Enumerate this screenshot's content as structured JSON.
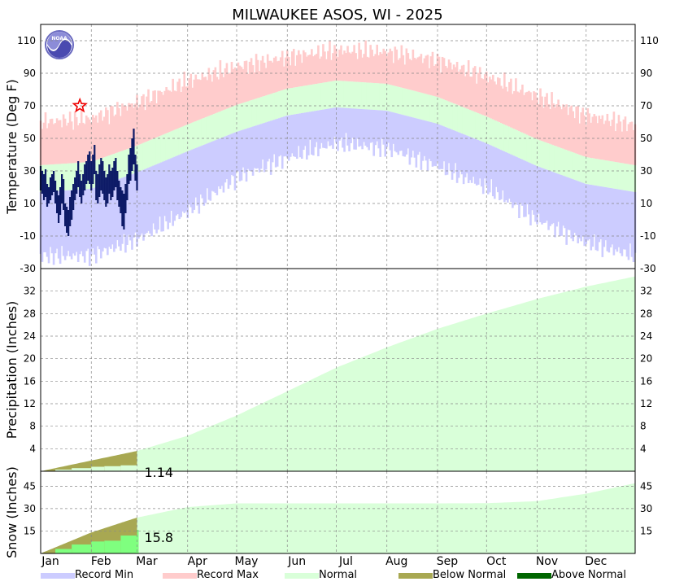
{
  "title": "MILWAUKEE    ASOS, WI - 2025",
  "logo_text": "NOAA",
  "colors": {
    "record_min": "#ccccff",
    "record_max": "#ffcccc",
    "normal": "#d9ffd9",
    "below_normal": "#a8a852",
    "above_normal": "#006600",
    "observed_temp": "#0d1a66",
    "observed_snow_depth": "#7fff7f",
    "grid": "#888888",
    "star": "#ee0000"
  },
  "months": [
    "Jan",
    "Feb",
    "Mar",
    "Apr",
    "May",
    "Jun",
    "Jul",
    "Aug",
    "Sep",
    "Oct",
    "Nov",
    "Dec"
  ],
  "chart_data": [
    {
      "type": "area",
      "title": "Temperature",
      "ylabel": "Temperature (Deg F)",
      "ylim": [
        -30,
        120
      ],
      "yticks": [
        -30,
        -10,
        10,
        30,
        50,
        70,
        90,
        110
      ],
      "grid": true,
      "x_unit": "day of year",
      "series": [
        {
          "name": "Record Max",
          "x": [
            1,
            32,
            60,
            91,
            121,
            152,
            182,
            213,
            244,
            274,
            305,
            335,
            365
          ],
          "values": [
            60,
            62,
            72,
            85,
            94,
            100,
            104,
            103,
            98,
            88,
            76,
            64,
            58
          ]
        },
        {
          "name": "Normal",
          "x": [
            1,
            32,
            60,
            91,
            121,
            152,
            182,
            213,
            244,
            274,
            305,
            335,
            365
          ],
          "values": [
            30,
            32,
            42,
            55,
            67,
            77,
            82,
            80,
            72,
            60,
            46,
            35,
            30
          ]
        },
        {
          "name": "Record Min",
          "x": [
            1,
            32,
            60,
            91,
            121,
            152,
            182,
            213,
            244,
            274,
            305,
            335,
            365
          ],
          "values": [
            -22,
            -22,
            -12,
            5,
            26,
            38,
            47,
            44,
            33,
            20,
            0,
            -14,
            -22
          ]
        }
      ],
      "observed": {
        "name": "Observed high/low",
        "x_start": 1,
        "highs": [
          33,
          30,
          28,
          31,
          22,
          20,
          26,
          28,
          30,
          24,
          18,
          15,
          20,
          28,
          25,
          10,
          8,
          6,
          14,
          18,
          22,
          26,
          30,
          36,
          28,
          24,
          28,
          34,
          36,
          40,
          42,
          36,
          40,
          46,
          30,
          28,
          34,
          38,
          36,
          30,
          26,
          28,
          34,
          30,
          32,
          36,
          38,
          30,
          24,
          20,
          18,
          16,
          22,
          28,
          40,
          44,
          50,
          56,
          40,
          34
        ],
        "lows": [
          18,
          16,
          12,
          14,
          8,
          10,
          12,
          15,
          17,
          10,
          4,
          -2,
          3,
          10,
          6,
          -4,
          -8,
          -10,
          -4,
          0,
          6,
          12,
          16,
          20,
          14,
          10,
          15,
          18,
          22,
          24,
          22,
          18,
          22,
          28,
          12,
          10,
          14,
          18,
          16,
          12,
          8,
          10,
          16,
          12,
          14,
          18,
          20,
          12,
          8,
          4,
          -4,
          -6,
          4,
          12,
          22,
          24,
          30,
          34,
          24,
          18
        ]
      },
      "annotations": [
        {
          "type": "record high marker",
          "x": 25,
          "y": 70
        }
      ]
    },
    {
      "type": "area",
      "title": "Precipitation",
      "ylabel": "Precipitation (Inches)",
      "ylim": [
        0,
        36
      ],
      "yticks": [
        4,
        8,
        12,
        16,
        20,
        24,
        28,
        32
      ],
      "grid": true,
      "series": [
        {
          "name": "Normal (cumulative)",
          "x": [
            1,
            32,
            60,
            91,
            121,
            152,
            182,
            213,
            244,
            274,
            305,
            335,
            365
          ],
          "values": [
            0,
            1.9,
            3.6,
            6.3,
            9.9,
            14.2,
            18.4,
            22.0,
            25.3,
            28.0,
            30.6,
            32.8,
            34.6
          ]
        },
        {
          "name": "Observed (cumulative)",
          "x": [
            1,
            10,
            20,
            32,
            40,
            50,
            60
          ],
          "values": [
            0.05,
            0.3,
            0.55,
            0.8,
            0.9,
            1.05,
            1.14
          ]
        }
      ],
      "ytd_value": "1.14"
    },
    {
      "type": "area",
      "title": "Snow",
      "ylabel": "Snow (Inches)",
      "ylim": [
        0,
        55
      ],
      "yticks": [
        15,
        30,
        45
      ],
      "grid": true,
      "series": [
        {
          "name": "Normal (cumulative)",
          "x": [
            1,
            32,
            60,
            91,
            121,
            152,
            182,
            213,
            244,
            274,
            305,
            335,
            365
          ],
          "values": [
            0,
            14,
            24,
            31,
            33.5,
            33.5,
            33.5,
            33.5,
            33.5,
            33.6,
            35,
            40,
            47
          ]
        },
        {
          "name": "Observed (cumulative)",
          "x": [
            1,
            10,
            20,
            32,
            40,
            50,
            60
          ],
          "values": [
            0,
            3,
            6,
            8,
            8.5,
            12,
            15.8
          ]
        }
      ],
      "ytd_value": "15.8"
    }
  ],
  "legend": [
    {
      "label": "Record Min",
      "color": "#ccccff"
    },
    {
      "label": "Record Max",
      "color": "#ffcccc"
    },
    {
      "label": "Normal",
      "color": "#d9ffd9"
    },
    {
      "label": "Below Normal",
      "color": "#a8a852"
    },
    {
      "label": "Above Normal",
      "color": "#006600"
    }
  ]
}
